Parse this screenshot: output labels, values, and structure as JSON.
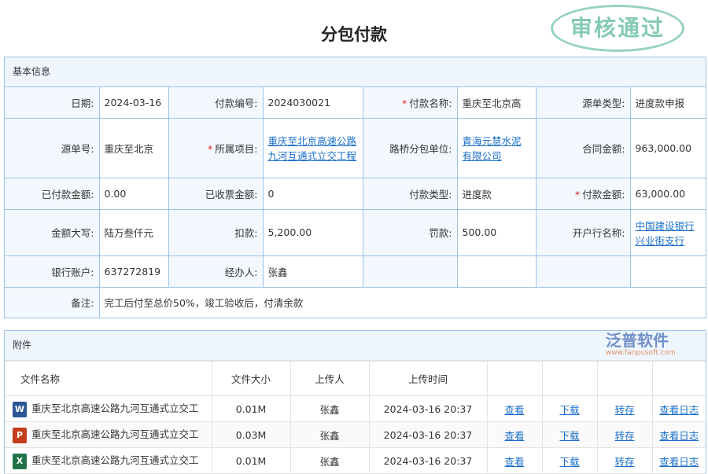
{
  "page_title": "分包付款",
  "basic": {
    "header": "基本信息",
    "rows": [
      [
        {
          "label": "日期:",
          "value": "2024-03-16"
        },
        {
          "label": "付款编号:",
          "value": "2024030021"
        },
        {
          "label": "付款名称:",
          "value": "重庆至北京高",
          "required": true
        },
        {
          "label": "源单类型:",
          "value": "进度款申报"
        }
      ],
      [
        {
          "label": "源单号:",
          "value": "重庆至北京"
        },
        {
          "label": "所属项目:",
          "value": "重庆至北京高速公路九河互通式立交工程",
          "required": true,
          "link": true
        },
        {
          "label": "路桥分包单位:",
          "value": "青海元慧水泥有限公司",
          "link": true
        },
        {
          "label": "合同金额:",
          "value": "963,000.00"
        }
      ],
      [
        {
          "label": "已付款金额:",
          "value": "0.00"
        },
        {
          "label": "已收票金额:",
          "value": "0"
        },
        {
          "label": "付款类型:",
          "value": "进度款"
        },
        {
          "label": "付款金额:",
          "value": "63,000.00",
          "required": true
        }
      ],
      [
        {
          "label": "金额大写:",
          "value": "陆万叁仟元"
        },
        {
          "label": "扣款:",
          "value": "5,200.00"
        },
        {
          "label": "罚款:",
          "value": "500.00"
        },
        {
          "label": "开户行名称:",
          "value": "中国建设银行兴业街支行",
          "link": true
        }
      ],
      [
        {
          "label": "银行账户:",
          "value": "637272819"
        },
        {
          "label": "经办人:",
          "value": "张鑫"
        }
      ]
    ],
    "remark_label": "备注:",
    "remark": "完工后付至总价50%，竣工验收后，付清余款"
  },
  "attachments": {
    "header": "附件",
    "columns": [
      "文件名称",
      "文件大小",
      "上传人",
      "上传时间"
    ],
    "actions": [
      "查看",
      "下载",
      "转存",
      "查看日志"
    ],
    "files": [
      {
        "icon": "word-icon",
        "icon_letter": "W",
        "icon_color": "#2b5797",
        "name": "重庆至北京高速公路九河互通式立交工",
        "size": "0.01M",
        "uploader": "张鑫",
        "time": "2024-03-16 20:37"
      },
      {
        "icon": "powerpoint-icon",
        "icon_letter": "P",
        "icon_color": "#c43e1c",
        "name": "重庆至北京高速公路九河互通式立交工",
        "size": "0.03M",
        "uploader": "张鑫",
        "time": "2024-03-16 20:37"
      },
      {
        "icon": "excel-icon",
        "icon_letter": "X",
        "icon_color": "#217346",
        "name": "重庆至北京高速公路九河互通式立交工",
        "size": "0.01M",
        "uploader": "张鑫",
        "time": "2024-03-16 20:37"
      }
    ]
  },
  "stamp": "审核通过",
  "watermark": {
    "brand": "泛普软件",
    "url": "www.fanpusoft.com"
  }
}
